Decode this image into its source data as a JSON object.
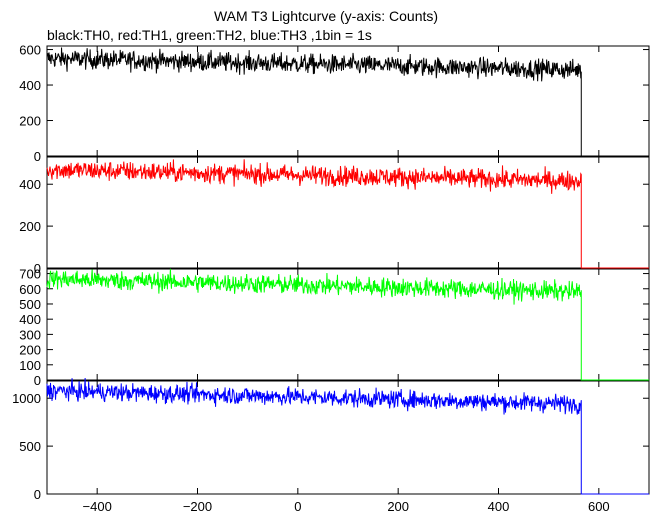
{
  "chart_data": {
    "type": "line",
    "title": "WAM T3 Lightcurve (y-axis: Counts)",
    "subtitle": "black:TH0, red:TH1, green:TH2, blue:TH3 ,1bin = 1s",
    "xlim": [
      -500,
      700
    ],
    "x_ticks": [
      -400,
      -200,
      0,
      200,
      400,
      600
    ],
    "x_tick_labels": [
      "−400",
      "−200",
      "0",
      "200",
      "400",
      "600"
    ],
    "grid": false,
    "series": [
      {
        "color": "#000000",
        "start_value": 550,
        "end_value": 485,
        "noise": 28,
        "drop_x": 565,
        "after_value": 0,
        "ylim": [
          0,
          620
        ],
        "y_ticks": [
          0,
          200,
          400,
          600
        ],
        "y_tick_labels": [
          "0",
          "200",
          "400",
          "600"
        ]
      },
      {
        "color": "#ff0000",
        "start_value": 470,
        "end_value": 415,
        "noise": 24,
        "drop_x": 565,
        "after_value": 0,
        "ylim": [
          0,
          530
        ],
        "y_ticks": [
          0,
          200,
          400
        ],
        "y_tick_labels": [
          "0",
          "200",
          "400"
        ]
      },
      {
        "color": "#00ff00",
        "start_value": 665,
        "end_value": 580,
        "noise": 32,
        "drop_x": 565,
        "after_value": 0,
        "ylim": [
          0,
          730
        ],
        "y_ticks": [
          0,
          100,
          200,
          300,
          400,
          500,
          600,
          700
        ],
        "y_tick_labels": [
          "0",
          "100",
          "200",
          "300",
          "400",
          "500",
          "600",
          "700"
        ]
      },
      {
        "color": "#0000ff",
        "start_value": 1080,
        "end_value": 940,
        "noise": 48,
        "drop_x": 565,
        "after_value": 0,
        "ylim": [
          0,
          1180
        ],
        "y_ticks": [
          0,
          500,
          1000
        ],
        "y_tick_labels": [
          "0",
          "500",
          "1000"
        ]
      }
    ]
  }
}
